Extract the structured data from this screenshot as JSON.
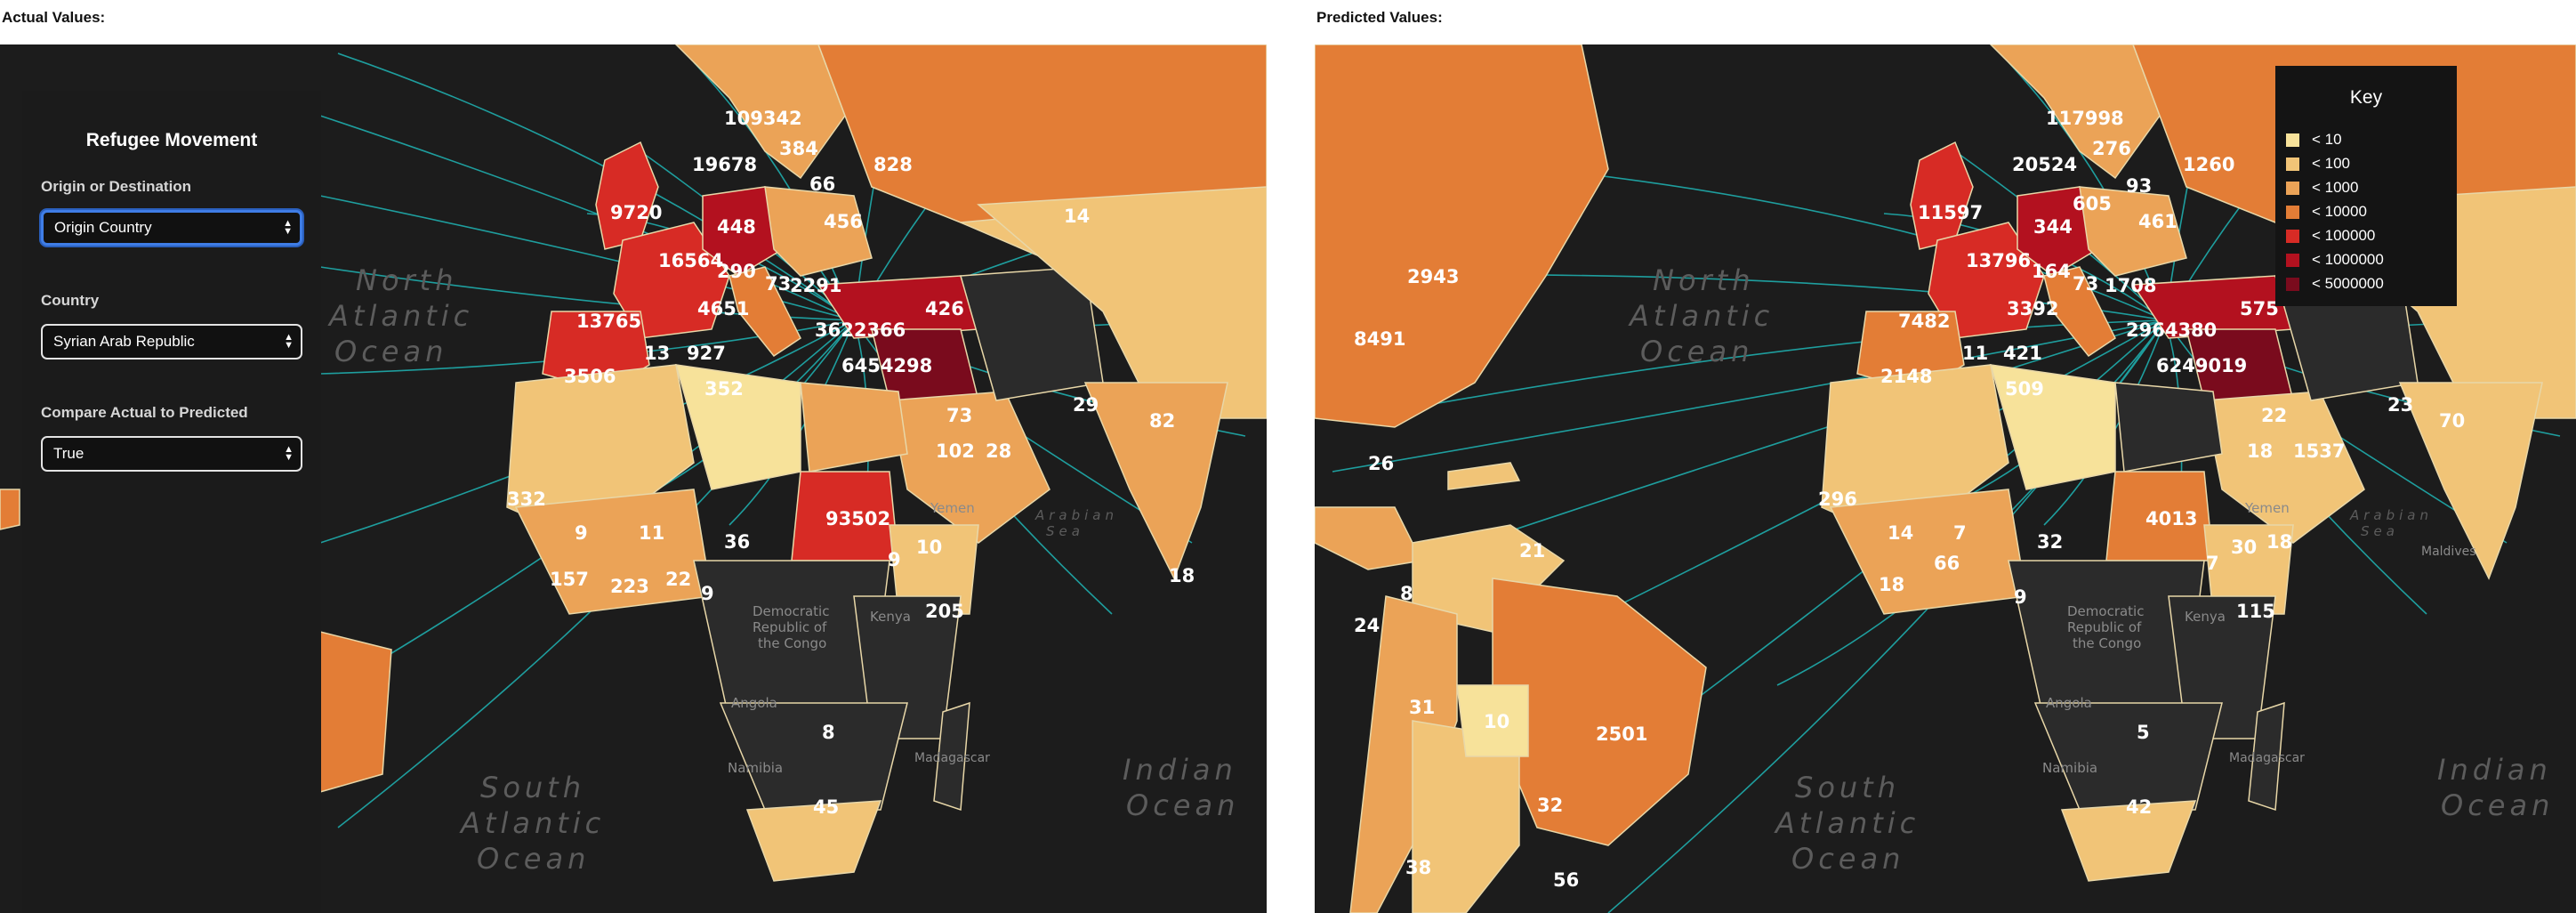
{
  "left_title": "Actual Values:",
  "right_title": "Predicted Values:",
  "panel": {
    "title": "Refugee Movement",
    "origin_label": "Origin or Destination",
    "origin_value": "Origin Country",
    "country_label": "Country",
    "country_value": "Syrian Arab Republic",
    "compare_label": "Compare Actual to Predicted",
    "compare_value": "True"
  },
  "key": {
    "title": "Key",
    "items": [
      {
        "label": "< 10",
        "color": "#f7e29a"
      },
      {
        "label": "< 100",
        "color": "#f1c477"
      },
      {
        "label": "< 1000",
        "color": "#eba357"
      },
      {
        "label": "< 10000",
        "color": "#e37d36"
      },
      {
        "label": "< 100000",
        "color": "#d72b25"
      },
      {
        "label": "< 1000000",
        "color": "#b3111f"
      },
      {
        "label": "< 5000000",
        "color": "#7a0b1d"
      }
    ]
  },
  "oceans": {
    "north_atlantic": [
      "North",
      "Atlantic",
      "Ocean"
    ],
    "south_atlantic": [
      "South",
      "Atlantic",
      "Ocean"
    ],
    "indian": [
      "Indian",
      "Ocean"
    ],
    "arabian": [
      "Arabian",
      "Sea"
    ]
  },
  "place_labels": {
    "drc": [
      "Democratic",
      "Republic of",
      "the Congo"
    ],
    "angola": "Angola",
    "namibia": "Namibia",
    "madagascar": "Madagascar",
    "kenya": "Kenya",
    "yemen": "Yemen",
    "maldives": "Maldives"
  },
  "actual_values": {
    "v1": "109342",
    "v2": "19678",
    "v3": "384",
    "v4": "828",
    "v5": "9720",
    "v6": "448",
    "v7": "66",
    "v8": "456",
    "v9": "14",
    "v10": "16564",
    "v11": "290",
    "v12": "73",
    "v13": "2291",
    "v14": "13765",
    "v15": "4651",
    "v16": "3622366",
    "v17": "426",
    "v18": "13",
    "v19": "927",
    "v20": "6454298",
    "v21": "3506",
    "v22": "352",
    "v23": "29",
    "v24": "82",
    "v25": "73",
    "v26": "102",
    "v27": "28",
    "v28": "332",
    "v29": "9",
    "v30": "11",
    "v31": "36",
    "v32": "93502",
    "v33": "10",
    "v34": "157",
    "v35": "223",
    "v36": "22",
    "v37": "9",
    "v38": "205",
    "v39": "18",
    "v40": "8",
    "v41": "45"
  },
  "predicted_values": {
    "v1": "117998",
    "v2": "20524",
    "v3": "276",
    "v4": "1260",
    "v5": "11597",
    "v6": "344",
    "v7": "605",
    "v8": "93",
    "v9": "461",
    "v10": "2943",
    "v11": "13796",
    "v12": "164",
    "v13": "73",
    "v14": "1708",
    "v15": "7482",
    "v16": "3392",
    "v17": "2964380",
    "v18": "575",
    "v19": "8491",
    "v20": "11",
    "v21": "421",
    "v22": "6249019",
    "v23": "2148",
    "v24": "509",
    "v25": "22",
    "v26": "23",
    "v27": "70",
    "v28": "18",
    "v29": "1537",
    "v30": "26",
    "v31": "296",
    "v32": "14",
    "v33": "7",
    "v34": "4013",
    "v35": "30",
    "v36": "32",
    "v37": "66",
    "v38": "7",
    "v39": "21",
    "v40": "18",
    "v41": "9",
    "v42": "115",
    "v43": "8",
    "v44": "24",
    "v45": "5",
    "v46": "31",
    "v47": "10",
    "v48": "2501",
    "v49": "42",
    "v50": "32",
    "v51": "38",
    "v52": "56"
  }
}
